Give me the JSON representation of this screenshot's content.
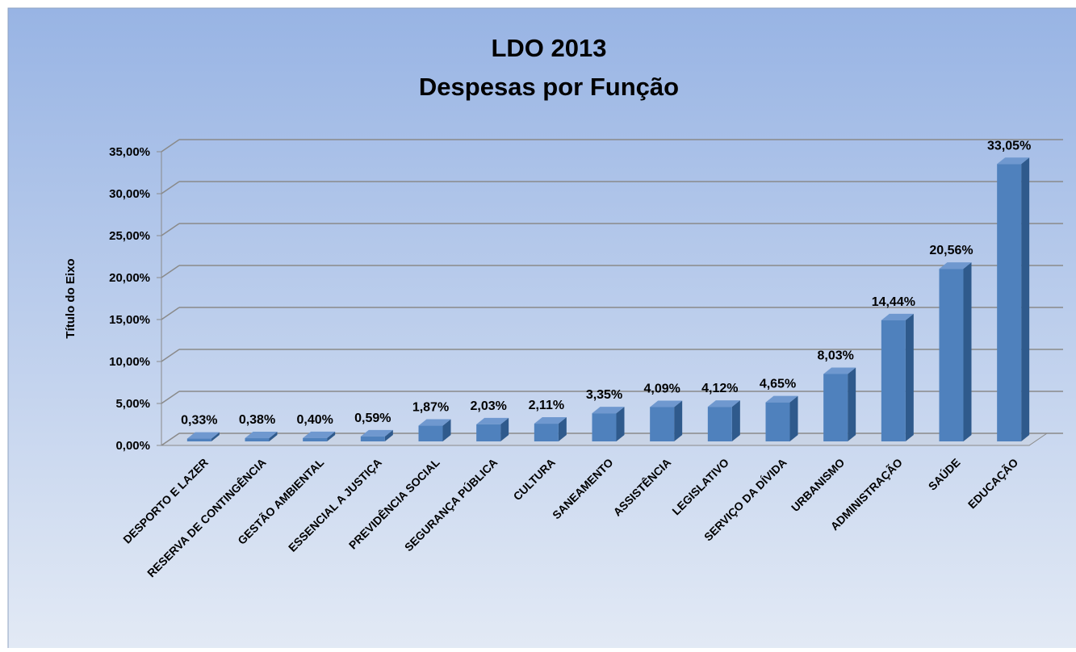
{
  "chart_data": {
    "type": "bar",
    "title": "LDO 2013",
    "subtitle": "Despesas por Função",
    "y_label": "Título do Eixo",
    "categories": [
      "DESPORTO E LAZER",
      "RESERVA DE CONTINGÊNCIA",
      "GESTÃO AMBIENTAL",
      "ESSENCIAL A JUSTIÇA",
      "PREVIDÊNCIA SOCIAL",
      "SEGURANÇA PÚBLICA",
      "CULTURA",
      "SANEAMENTO",
      "ASSISTÊNCIA",
      "LEGISLATIVO",
      "SERVIÇO DA DÍVIDA",
      "URBANISMO",
      "ADMINISTRAÇÃO",
      "SAÚDE",
      "EDUCAÇÃO"
    ],
    "values": [
      0.33,
      0.38,
      0.4,
      0.59,
      1.87,
      2.03,
      2.11,
      3.35,
      4.09,
      4.12,
      4.65,
      8.03,
      14.44,
      20.56,
      33.05
    ],
    "value_labels": [
      "0,33%",
      "0,38%",
      "0,40%",
      "0,59%",
      "1,87%",
      "2,03%",
      "2,11%",
      "3,35%",
      "4,09%",
      "4,12%",
      "4,65%",
      "8,03%",
      "14,44%",
      "20,56%",
      "33,05%"
    ],
    "color": "#4f81bd",
    "ylim": [
      0,
      35
    ],
    "yticks": [
      {
        "value": 0,
        "label": "0,00%"
      },
      {
        "value": 5,
        "label": "5,00%"
      },
      {
        "value": 10,
        "label": "10,00%"
      },
      {
        "value": 15,
        "label": "15,00%"
      },
      {
        "value": 20,
        "label": "20,00%"
      },
      {
        "value": 25,
        "label": "25,00%"
      },
      {
        "value": 30,
        "label": "30,00%"
      },
      {
        "value": 35,
        "label": "35,00%"
      }
    ],
    "grid": true
  }
}
